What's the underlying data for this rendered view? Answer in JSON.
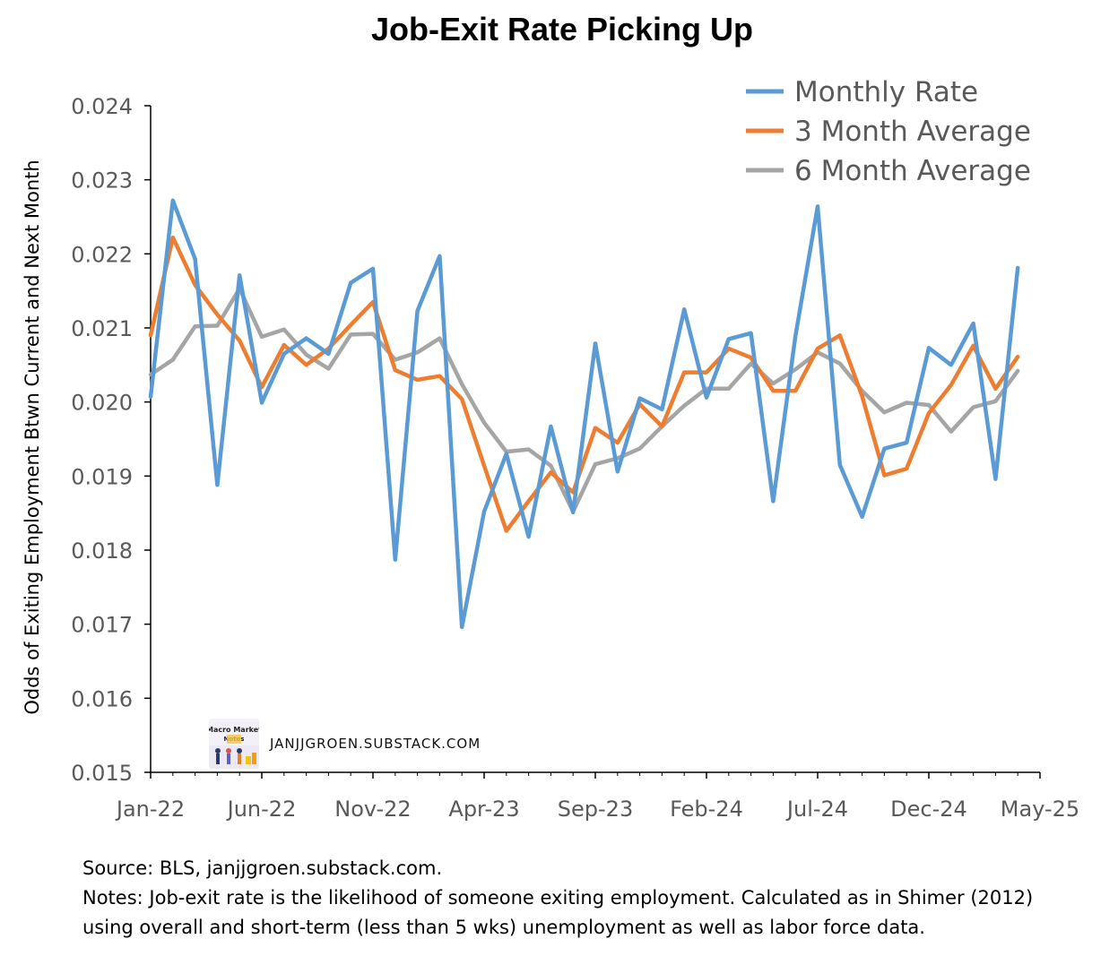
{
  "chart_data": {
    "type": "line",
    "title": "Job-Exit Rate Picking Up",
    "ylabel": "Odds of Exiting Employment Btwn Current and Next Month",
    "xlabel": "",
    "ylim": [
      0.015,
      0.024
    ],
    "y_ticks": [
      "0.015",
      "0.016",
      "0.017",
      "0.018",
      "0.019",
      "0.020",
      "0.021",
      "0.022",
      "0.023",
      "0.024"
    ],
    "x_tick_labels": [
      "Jan-22",
      "Jun-22",
      "Nov-22",
      "Apr-23",
      "Sep-23",
      "Feb-24",
      "Jul-24",
      "Dec-24",
      "May-25"
    ],
    "x": [
      "Jan-22",
      "Feb-22",
      "Mar-22",
      "Apr-22",
      "May-22",
      "Jun-22",
      "Jul-22",
      "Aug-22",
      "Sep-22",
      "Oct-22",
      "Nov-22",
      "Dec-22",
      "Jan-23",
      "Feb-23",
      "Mar-23",
      "Apr-23",
      "May-23",
      "Jun-23",
      "Jul-23",
      "Aug-23",
      "Sep-23",
      "Oct-23",
      "Nov-23",
      "Dec-23",
      "Jan-24",
      "Feb-24",
      "Mar-24",
      "Apr-24",
      "May-24",
      "Jun-24",
      "Jul-24",
      "Aug-24",
      "Sep-24",
      "Oct-24",
      "Nov-24",
      "Dec-24",
      "Jan-25",
      "Feb-25",
      "Mar-25",
      "Apr-25"
    ],
    "grid": false,
    "legend_position": "top-right",
    "series": [
      {
        "name": "Monthly Rate",
        "color": "#5b9bd5",
        "values": [
          0.02007,
          0.02272,
          0.02193,
          0.01888,
          0.02171,
          0.01999,
          0.02065,
          0.02086,
          0.02065,
          0.02161,
          0.0218,
          0.01787,
          0.02123,
          0.02197,
          0.01696,
          0.01852,
          0.0193,
          0.01818,
          0.01967,
          0.01851,
          0.02079,
          0.01906,
          0.02005,
          0.0199,
          0.02125,
          0.02006,
          0.02085,
          0.02093,
          0.01866,
          0.02089,
          0.02264,
          0.01915,
          0.01845,
          0.01937,
          0.01945,
          0.02073,
          0.0205,
          0.02106,
          0.01896,
          0.02181
        ]
      },
      {
        "name": "3 Month Average",
        "color": "#ed7d31",
        "values": [
          0.0209,
          0.02222,
          0.02158,
          0.02118,
          0.02083,
          0.0202,
          0.02077,
          0.0205,
          0.02072,
          0.02104,
          0.02135,
          0.02043,
          0.0203,
          0.02035,
          0.02004,
          0.01914,
          0.01826,
          0.01866,
          0.01905,
          0.01878,
          0.01965,
          0.01945,
          0.01997,
          0.01967,
          0.0204,
          0.0204,
          0.02072,
          0.0206,
          0.02015,
          0.02015,
          0.02072,
          0.0209,
          0.02008,
          0.01901,
          0.0191,
          0.01985,
          0.02023,
          0.02076,
          0.02018,
          0.02061
        ]
      },
      {
        "name": "6 Month Average",
        "color": "#a5a5a5",
        "values": [
          0.02037,
          0.02057,
          0.02102,
          0.02103,
          0.02153,
          0.02088,
          0.02098,
          0.02064,
          0.02045,
          0.02091,
          0.02092,
          0.02057,
          0.02067,
          0.02086,
          0.02024,
          0.01972,
          0.01933,
          0.01936,
          0.01914,
          0.01852,
          0.01916,
          0.01924,
          0.01937,
          0.01967,
          0.01995,
          0.02018,
          0.02018,
          0.02052,
          0.02025,
          0.02044,
          0.02067,
          0.02052,
          0.02015,
          0.01986,
          0.01999,
          0.01996,
          0.0196,
          0.01993,
          0.02001,
          0.02042
        ]
      }
    ]
  },
  "watermark": {
    "logo_text": "Macro Market Notes",
    "text": "JANJJGROEN.SUBSTACK.COM"
  },
  "notes": {
    "source": "Source: BLS, janjjgroen.substack.com.",
    "line1": "Notes: Job-exit rate is the likelihood of someone exiting employment. Calculated as in Shimer (2012)",
    "line2": "using overall and short-term (less than 5 wks) unemployment as well as labor force data."
  }
}
